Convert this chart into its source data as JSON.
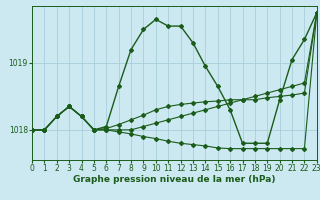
{
  "title": "Graphe pression niveau de la mer (hPa)",
  "bg_color": "#cce8f0",
  "grid_color": "#aacfdb",
  "line_color": "#1a5c1a",
  "xlim": [
    0,
    23
  ],
  "ylim": [
    1017.55,
    1019.85
  ],
  "yticks": [
    1018,
    1019
  ],
  "xticks": [
    0,
    1,
    2,
    3,
    4,
    5,
    6,
    7,
    8,
    9,
    10,
    11,
    12,
    13,
    14,
    15,
    16,
    17,
    18,
    19,
    20,
    21,
    22,
    23
  ],
  "series": [
    [
      1018.0,
      1018.0,
      1018.2,
      1018.35,
      1018.2,
      1018.0,
      1018.05,
      1018.65,
      1019.2,
      1019.5,
      1019.65,
      1019.55,
      1019.55,
      1019.3,
      1018.95,
      1018.65,
      1018.3,
      1017.8,
      1017.8,
      1017.8,
      1018.45,
      1019.05,
      1019.35,
      1019.75
    ],
    [
      1018.0,
      1018.0,
      1018.2,
      1018.35,
      1018.2,
      1018.0,
      1018.0,
      1018.0,
      1018.0,
      1018.05,
      1018.1,
      1018.15,
      1018.2,
      1018.25,
      1018.3,
      1018.35,
      1018.4,
      1018.45,
      1018.5,
      1018.55,
      1018.6,
      1018.65,
      1018.7,
      1019.75
    ],
    [
      1018.0,
      1018.0,
      1018.2,
      1018.35,
      1018.2,
      1018.0,
      1018.0,
      1017.97,
      1017.94,
      1017.9,
      1017.87,
      1017.83,
      1017.8,
      1017.78,
      1017.76,
      1017.73,
      1017.72,
      1017.72,
      1017.72,
      1017.72,
      1017.72,
      1017.72,
      1017.72,
      1019.75
    ],
    [
      1018.0,
      1018.0,
      1018.2,
      1018.35,
      1018.2,
      1018.0,
      1018.02,
      1018.08,
      1018.15,
      1018.22,
      1018.3,
      1018.35,
      1018.38,
      1018.4,
      1018.42,
      1018.43,
      1018.45,
      1018.45,
      1018.45,
      1018.48,
      1018.5,
      1018.52,
      1018.55,
      1019.75
    ]
  ],
  "marker": "D",
  "markersize": 2.0,
  "linewidth_main": 1.0,
  "linewidth_other": 0.8,
  "tick_fontsize": 5.5,
  "xlabel_fontsize": 6.5
}
